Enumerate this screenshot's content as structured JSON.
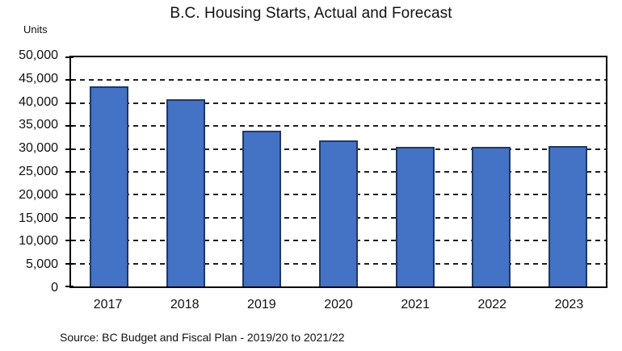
{
  "title": "B.C. Housing Starts, Actual and Forecast",
  "units_label": "Units",
  "source_note": "Source: BC Budget and Fiscal Plan - 2019/20 to 2021/22",
  "colors": {
    "bar_fill": "#4472C4",
    "bar_border": "#1F3864",
    "axis": "#000000",
    "grid": "#1f1f1f"
  },
  "chart_data": {
    "type": "bar",
    "title": "B.C. Housing Starts, Actual and Forecast",
    "xlabel": "",
    "ylabel": "Units",
    "categories": [
      "2017",
      "2018",
      "2019",
      "2020",
      "2021",
      "2022",
      "2023"
    ],
    "values": [
      43600,
      40900,
      33900,
      31800,
      30400,
      30400,
      30600
    ],
    "ylim": [
      0,
      50000
    ],
    "ytick_step": 5000,
    "yticks": [
      {
        "value": 0,
        "label": "0"
      },
      {
        "value": 5000,
        "label": "5,000"
      },
      {
        "value": 10000,
        "label": "10,000"
      },
      {
        "value": 15000,
        "label": "15,000"
      },
      {
        "value": 20000,
        "label": "20,000"
      },
      {
        "value": 25000,
        "label": "25,000"
      },
      {
        "value": 30000,
        "label": "30,000"
      },
      {
        "value": 35000,
        "label": "35,000"
      },
      {
        "value": 40000,
        "label": "40,000"
      },
      {
        "value": 45000,
        "label": "45,000"
      },
      {
        "value": 50000,
        "label": "50,000"
      }
    ],
    "grid": "dashed-horizontal",
    "legend": "none"
  }
}
